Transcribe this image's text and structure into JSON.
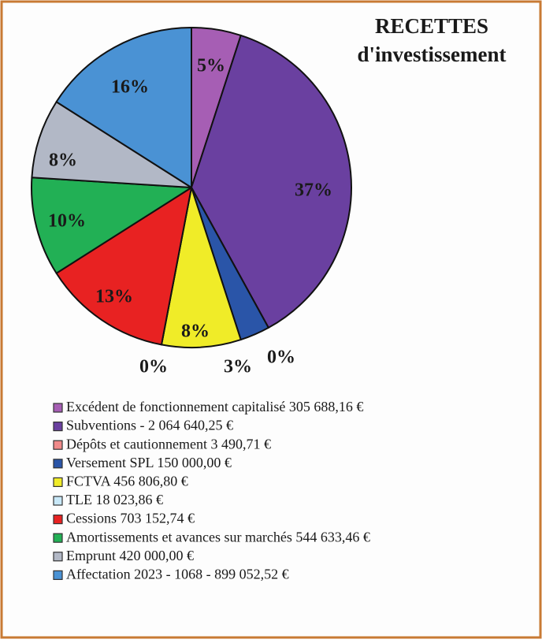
{
  "chart_data": {
    "type": "pie",
    "title": "RECETTES",
    "subtitle": "d'investissement",
    "categories": [
      "Excédent de fonctionnement capitalisé 305 688,16 €",
      "Subventions - 2 064 640,25 €",
      "Dépôts et cautionnement 3 490,71 €",
      "Versement SPL 150 000,00 €",
      "FCTVA 456 806,80 €",
      "TLE 18 023,86 €",
      "Cessions 703 152,74 €",
      "Amortissements et avances sur marchés 544 633,46 €",
      "Emprunt 420 000,00 €",
      "Affectation 2023 - 1068 - 899 052,52 €"
    ],
    "values": [
      5,
      37,
      0,
      3,
      8,
      0,
      13,
      10,
      8,
      16
    ],
    "value_labels": [
      "5%",
      "37%",
      "0%",
      "3%",
      "8%",
      "0%",
      "13%",
      "10%",
      "8%",
      "16%"
    ],
    "colors": [
      "#a65eb4",
      "#6a40a0",
      "#f08a8a",
      "#2a55a8",
      "#f0ec28",
      "#c8e8f8",
      "#e82222",
      "#22b055",
      "#b2b8c6",
      "#4a92d4"
    ]
  }
}
